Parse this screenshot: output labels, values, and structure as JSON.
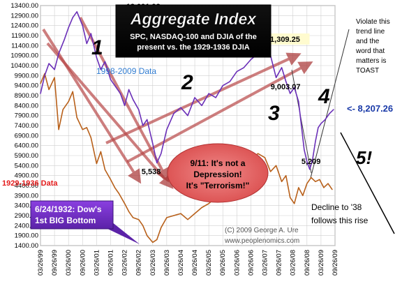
{
  "title_box": {
    "title": "Aggregate Index",
    "subtitle_line1": "SPC, NASDAQ-100 and DJIA of the",
    "subtitle_line2": "present vs. the 1929-1936 DJIA"
  },
  "chart_data": {
    "type": "line",
    "ylim": [
      1400,
      13400
    ],
    "yticks": [
      "13400.00",
      "12900.00",
      "12400.00",
      "11900.00",
      "11400.00",
      "10900.00",
      "10400.00",
      "9900.00",
      "9400.00",
      "8900.00",
      "8400.00",
      "7900.00",
      "7400.00",
      "6900.00",
      "6400.00",
      "5900.00",
      "5400.00",
      "4900.00",
      "4400.00",
      "3900.00",
      "3400.00",
      "2900.00",
      "2400.00",
      "1900.00",
      "1400.00"
    ],
    "x_tick_labels": [
      "03/26/99",
      "09/26/99",
      "03/26/00",
      "09/26/00",
      "03/26/01",
      "09/26/01",
      "03/26/02",
      "09/26/02",
      "03/26/03",
      "09/26/03",
      "03/26/04",
      "09/26/04",
      "03/26/05",
      "09/26/05",
      "03/26/06",
      "09/26/06",
      "03/26/07",
      "09/26/07",
      "03/26/08",
      "09/26/08",
      "03/26/09",
      "09/26/09"
    ],
    "grid": true,
    "series": [
      {
        "name": "1998-2009 Data",
        "color": "#6a2fb8",
        "x": [
          0,
          0.3,
          0.6,
          1,
          1.3,
          1.7,
          2,
          2.3,
          2.6,
          3,
          3.3,
          3.6,
          4,
          4.3,
          4.6,
          5,
          5.3,
          5.7,
          6,
          6.3,
          6.6,
          7,
          7.3,
          7.6,
          8,
          8.3,
          8.6,
          9,
          9.5,
          10,
          10.5,
          11,
          11.5,
          12,
          12.5,
          13,
          13.5,
          14,
          14.5,
          15,
          15.5,
          16,
          16.4,
          16.8,
          17.2,
          17.5,
          17.8,
          18.1,
          18.4,
          18.6,
          18.8,
          19,
          19.2,
          19.4,
          19.6,
          19.8,
          20,
          20.3,
          20.6,
          20.9
        ],
        "y": [
          9000,
          9900,
          10500,
          10200,
          11000,
          11700,
          12300,
          12800,
          13091.93,
          12400,
          11500,
          12000,
          10800,
          10200,
          10600,
          9700,
          9400,
          9000,
          8400,
          9200,
          8700,
          8200,
          7400,
          7700,
          6500,
          5538,
          6000,
          7200,
          8000,
          8300,
          7900,
          8800,
          8400,
          9000,
          8800,
          9400,
          9600,
          10100,
          10300,
          10700,
          11000,
          11309.25,
          10900,
          9800,
          10300,
          9600,
          9003.07,
          9300,
          8600,
          7400,
          6200,
          5600,
          5209,
          5700,
          6600,
          7300,
          7500,
          7700,
          8000,
          8207.26
        ]
      },
      {
        "name": "1929-1936 Data",
        "color": "#b8601a",
        "x": [
          0,
          0.3,
          0.6,
          1,
          1.3,
          1.6,
          2,
          2.3,
          2.6,
          3,
          3.3,
          3.6,
          4,
          4.3,
          4.6,
          5,
          5.3,
          5.6,
          6,
          6.3,
          6.6,
          7,
          7.3,
          7.6,
          8,
          8.3,
          8.6,
          9,
          9.5,
          10,
          10.5,
          11,
          11.5,
          12,
          12.5,
          13,
          13.5,
          14,
          14.5,
          15,
          15.5,
          16,
          16.4,
          16.8,
          17.2,
          17.5,
          17.8,
          18.1,
          18.4,
          18.7,
          19,
          19.3,
          19.6,
          19.9,
          20.2,
          20.5,
          20.8
        ],
        "y": [
          9500,
          10000,
          9200,
          9800,
          7200,
          8200,
          8600,
          9100,
          7800,
          7200,
          7300,
          6800,
          5500,
          6100,
          5200,
          4700,
          4300,
          4000,
          3500,
          3100,
          2800,
          2700,
          2400,
          1900,
          1560,
          1700,
          2300,
          2800,
          2900,
          3000,
          2700,
          3000,
          3300,
          3500,
          3800,
          4100,
          4400,
          4800,
          5200,
          5600,
          6000,
          5800,
          5100,
          5400,
          4600,
          4900,
          3800,
          3500,
          4300,
          3900,
          4500,
          4800,
          4600,
          4700,
          4300,
          4500,
          4200
        ]
      }
    ],
    "peak_labels": [
      {
        "text": "13,091.93",
        "x": 8,
        "y": 13091.93
      },
      {
        "text": "11,309.25",
        "x": 16,
        "y": 11309.25
      },
      {
        "text": "9,003.07",
        "x": 17.8,
        "y": 9003.07
      },
      {
        "text": "5,538",
        "x": 8.3,
        "y": 5538
      },
      {
        "text": "5,209",
        "x": 19.2,
        "y": 5209
      }
    ],
    "annotations": {
      "series_label_modern": "1998-2009 Data",
      "series_label_old": "1929-1936 Data",
      "current_value": "<- 8,207.26",
      "big_numbers": [
        "1",
        "2",
        "3",
        "4",
        "5!"
      ],
      "violate_note": [
        "Violate this",
        "trend line",
        "and the",
        "word that",
        "matters is",
        "TOAST"
      ],
      "ellipse_lines": [
        "9/11: It's not a",
        "Depression!",
        "It's \"Terrorism!\""
      ],
      "bottom_box_lines": [
        "6/24/1932: Dow's",
        "1st BIG Bottom"
      ],
      "decline_lines": [
        "Decline to '38",
        "follows this rise"
      ],
      "copyright": "(C) 2009 George A. Ure",
      "website": "www.peoplenomics.com"
    }
  }
}
